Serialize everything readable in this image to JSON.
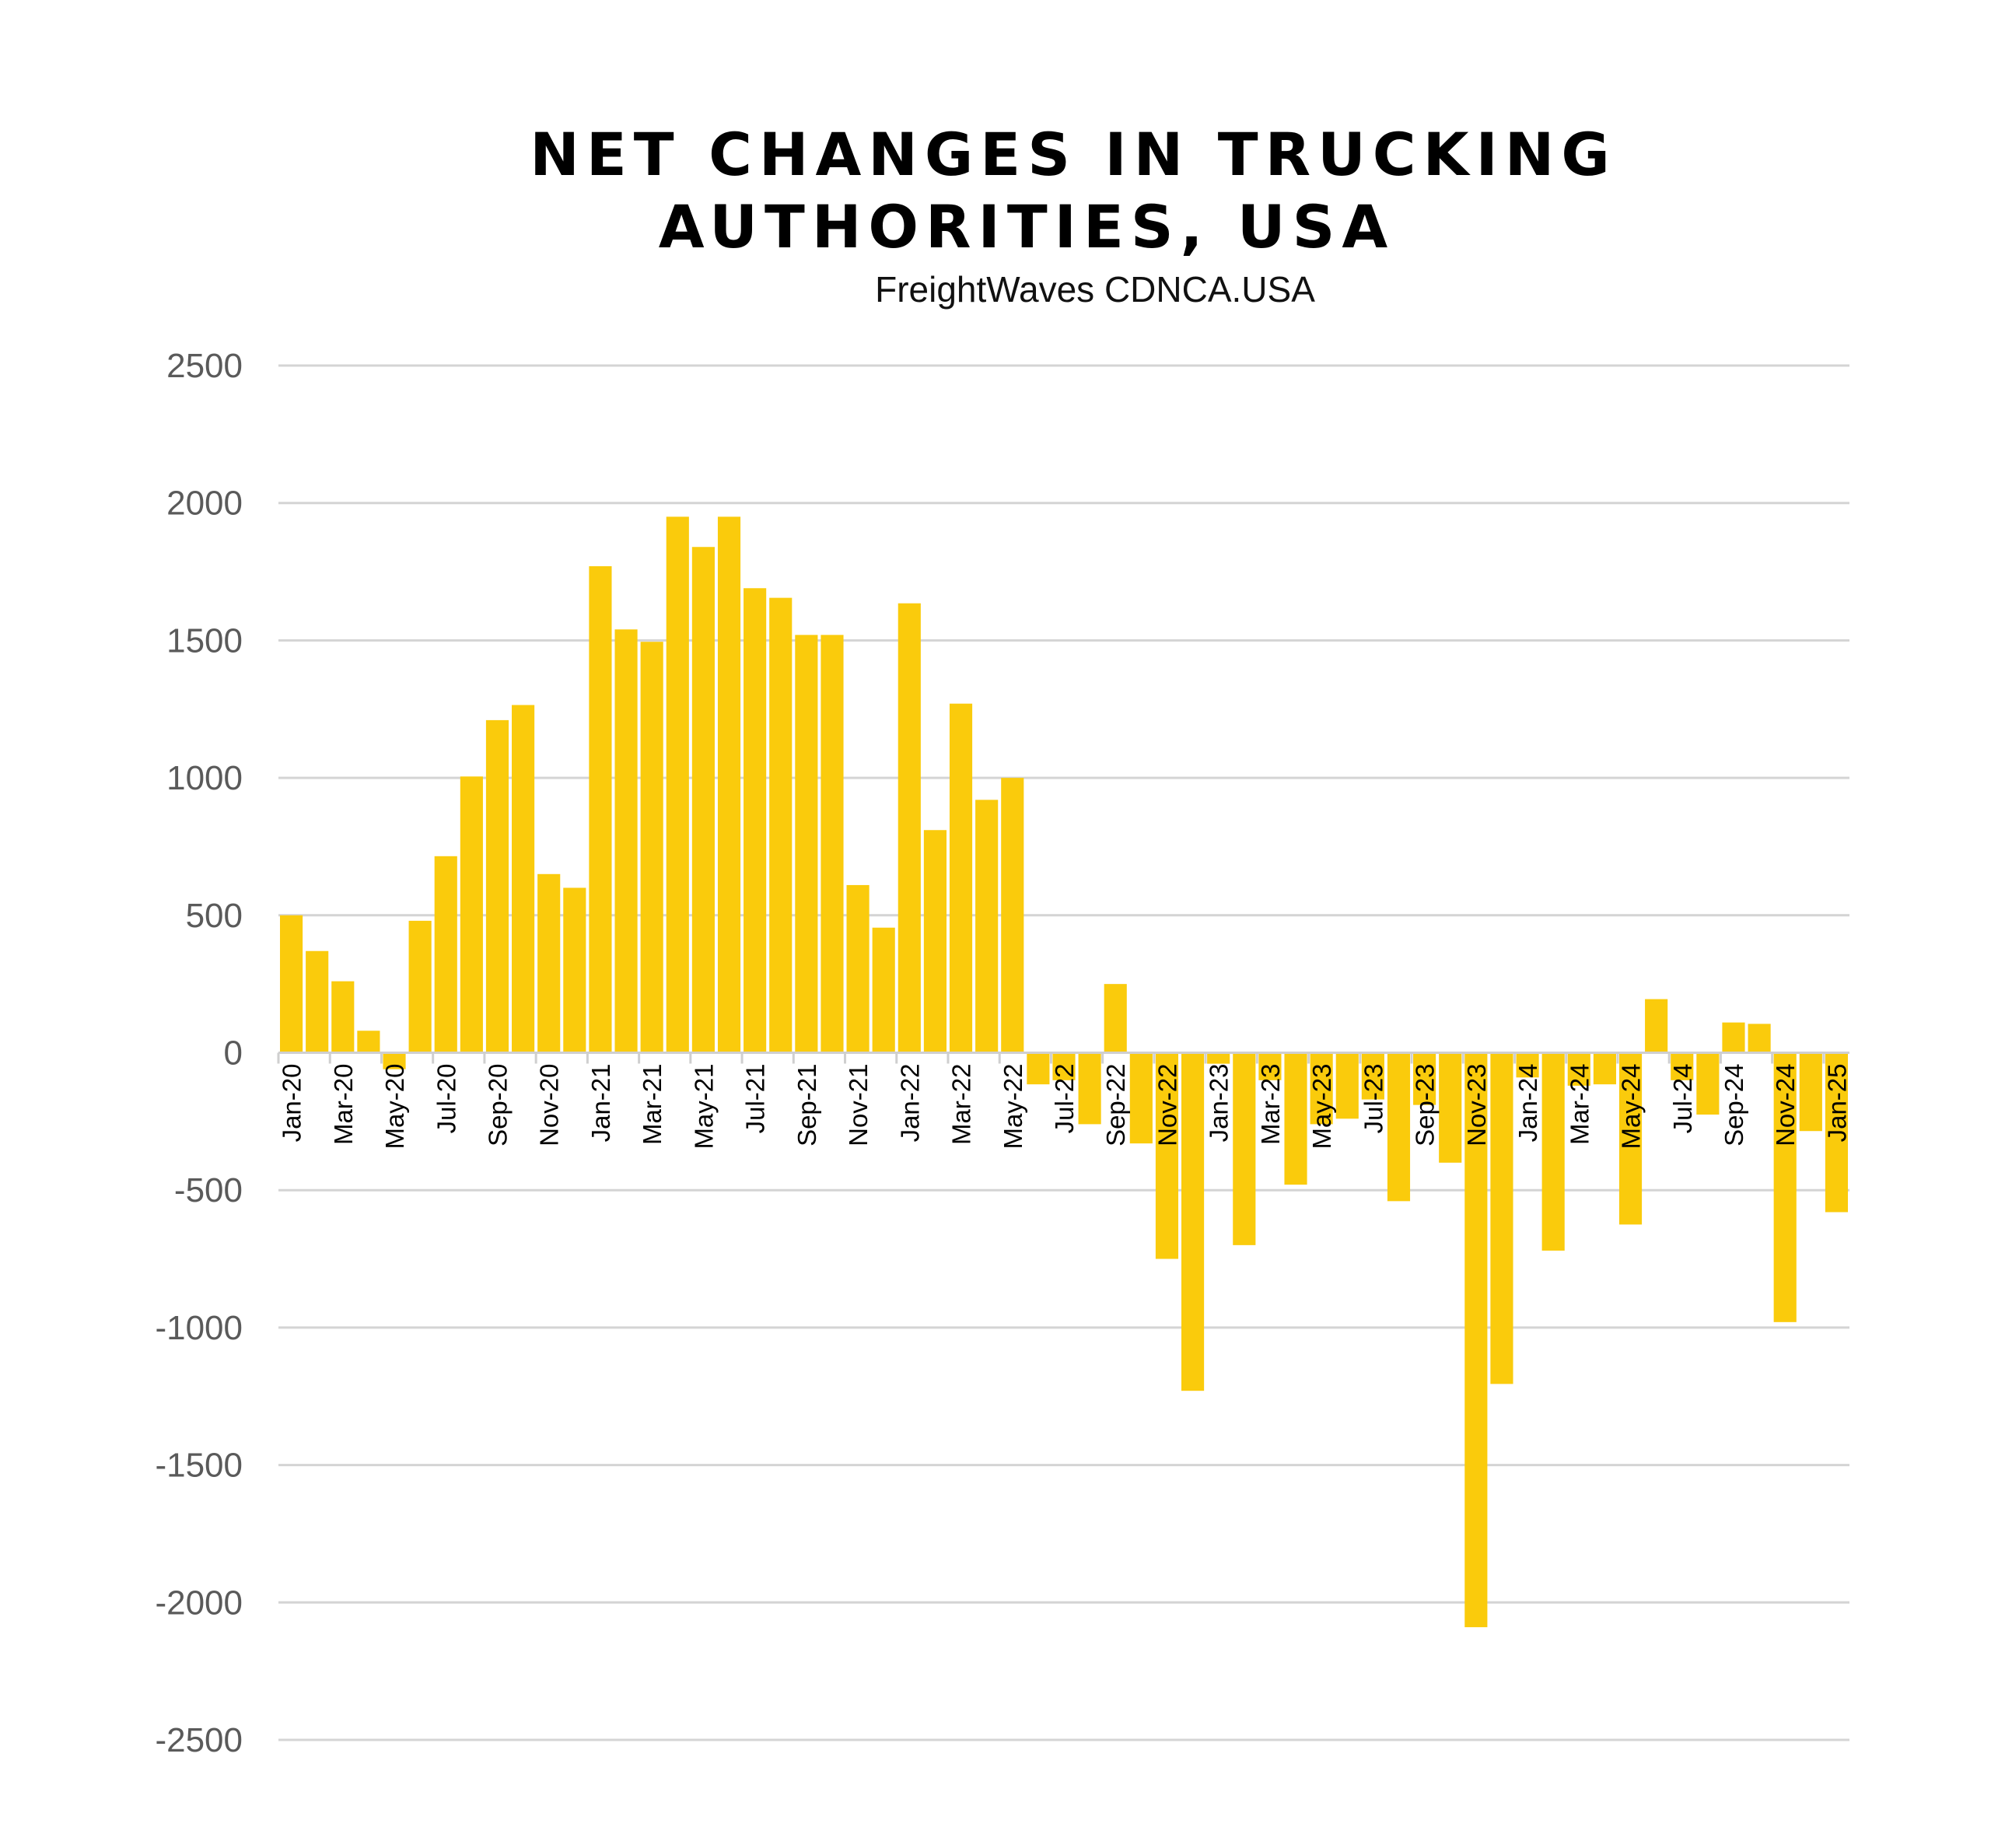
{
  "chart_data": {
    "type": "bar",
    "title_lines": [
      "NET CHANGES IN TRUCKING",
      "AUTHORITIES, USA"
    ],
    "subtitle": "FreightWaves CDNCA.USA",
    "xlabel": "",
    "ylabel": "",
    "ylim": [
      -2500,
      2500
    ],
    "yticks": [
      "2500",
      "2000",
      "1500",
      "1000",
      "500",
      "0",
      "-500",
      "-1000",
      "-1500",
      "-2000",
      "-2500"
    ],
    "ytick_values": [
      2500,
      2000,
      1500,
      1000,
      500,
      0,
      -500,
      -1000,
      -1500,
      -2000,
      -2500
    ],
    "grid": true,
    "bar_color": "#FACB0C",
    "categories": [
      "Jan-20",
      "Feb-20",
      "Mar-20",
      "Apr-20",
      "May-20",
      "Jun-20",
      "Jul-20",
      "Aug-20",
      "Sep-20",
      "Oct-20",
      "Nov-20",
      "Dec-20",
      "Jan-21",
      "Feb-21",
      "Mar-21",
      "Apr-21",
      "May-21",
      "Jun-21",
      "Jul-21",
      "Aug-21",
      "Sep-21",
      "Oct-21",
      "Nov-21",
      "Dec-21",
      "Jan-22",
      "Feb-22",
      "Mar-22",
      "Apr-22",
      "May-22",
      "Jun-22",
      "Jul-22",
      "Aug-22",
      "Sep-22",
      "Oct-22",
      "Nov-22",
      "Dec-22",
      "Jan-23",
      "Feb-23",
      "Mar-23",
      "Apr-23",
      "May-23",
      "Jun-23",
      "Jul-23",
      "Aug-23",
      "Sep-23",
      "Oct-23",
      "Nov-23",
      "Dec-23",
      "Jan-24",
      "Feb-24",
      "Mar-24",
      "Apr-24",
      "May-24",
      "Jun-24",
      "Jul-24",
      "Aug-24",
      "Sep-24",
      "Oct-24",
      "Nov-24",
      "Dec-24",
      "Jan-25"
    ],
    "xtick_labels": [
      "Jan-20",
      "Mar-20",
      "May-20",
      "Jul-20",
      "Sep-20",
      "Nov-20",
      "Jan-21",
      "Mar-21",
      "May-21",
      "Jul-21",
      "Sep-21",
      "Nov-21",
      "Jan-22",
      "Mar-22",
      "May-22",
      "Jul-22",
      "Sep-22",
      "Nov-22",
      "Jan-23",
      "Mar-23",
      "May-23",
      "Jul-23",
      "Sep-23",
      "Nov-23",
      "Jan-24",
      "Mar-24",
      "May-24",
      "Jul-24",
      "Sep-24",
      "Nov-24",
      "Jan-25"
    ],
    "values": [
      500,
      370,
      260,
      80,
      -60,
      480,
      715,
      1005,
      1210,
      1265,
      650,
      600,
      1770,
      1540,
      1495,
      1950,
      1840,
      1950,
      1690,
      1655,
      1520,
      1520,
      610,
      455,
      1635,
      810,
      1270,
      920,
      1000,
      -115,
      -100,
      -260,
      250,
      -330,
      -750,
      -1230,
      -40,
      -700,
      -100,
      -480,
      -260,
      -240,
      -170,
      -540,
      -190,
      -400,
      -2090,
      -1205,
      -90,
      -720,
      -120,
      -115,
      -625,
      195,
      -100,
      -225,
      110,
      105,
      -980,
      -285,
      -580
    ]
  }
}
